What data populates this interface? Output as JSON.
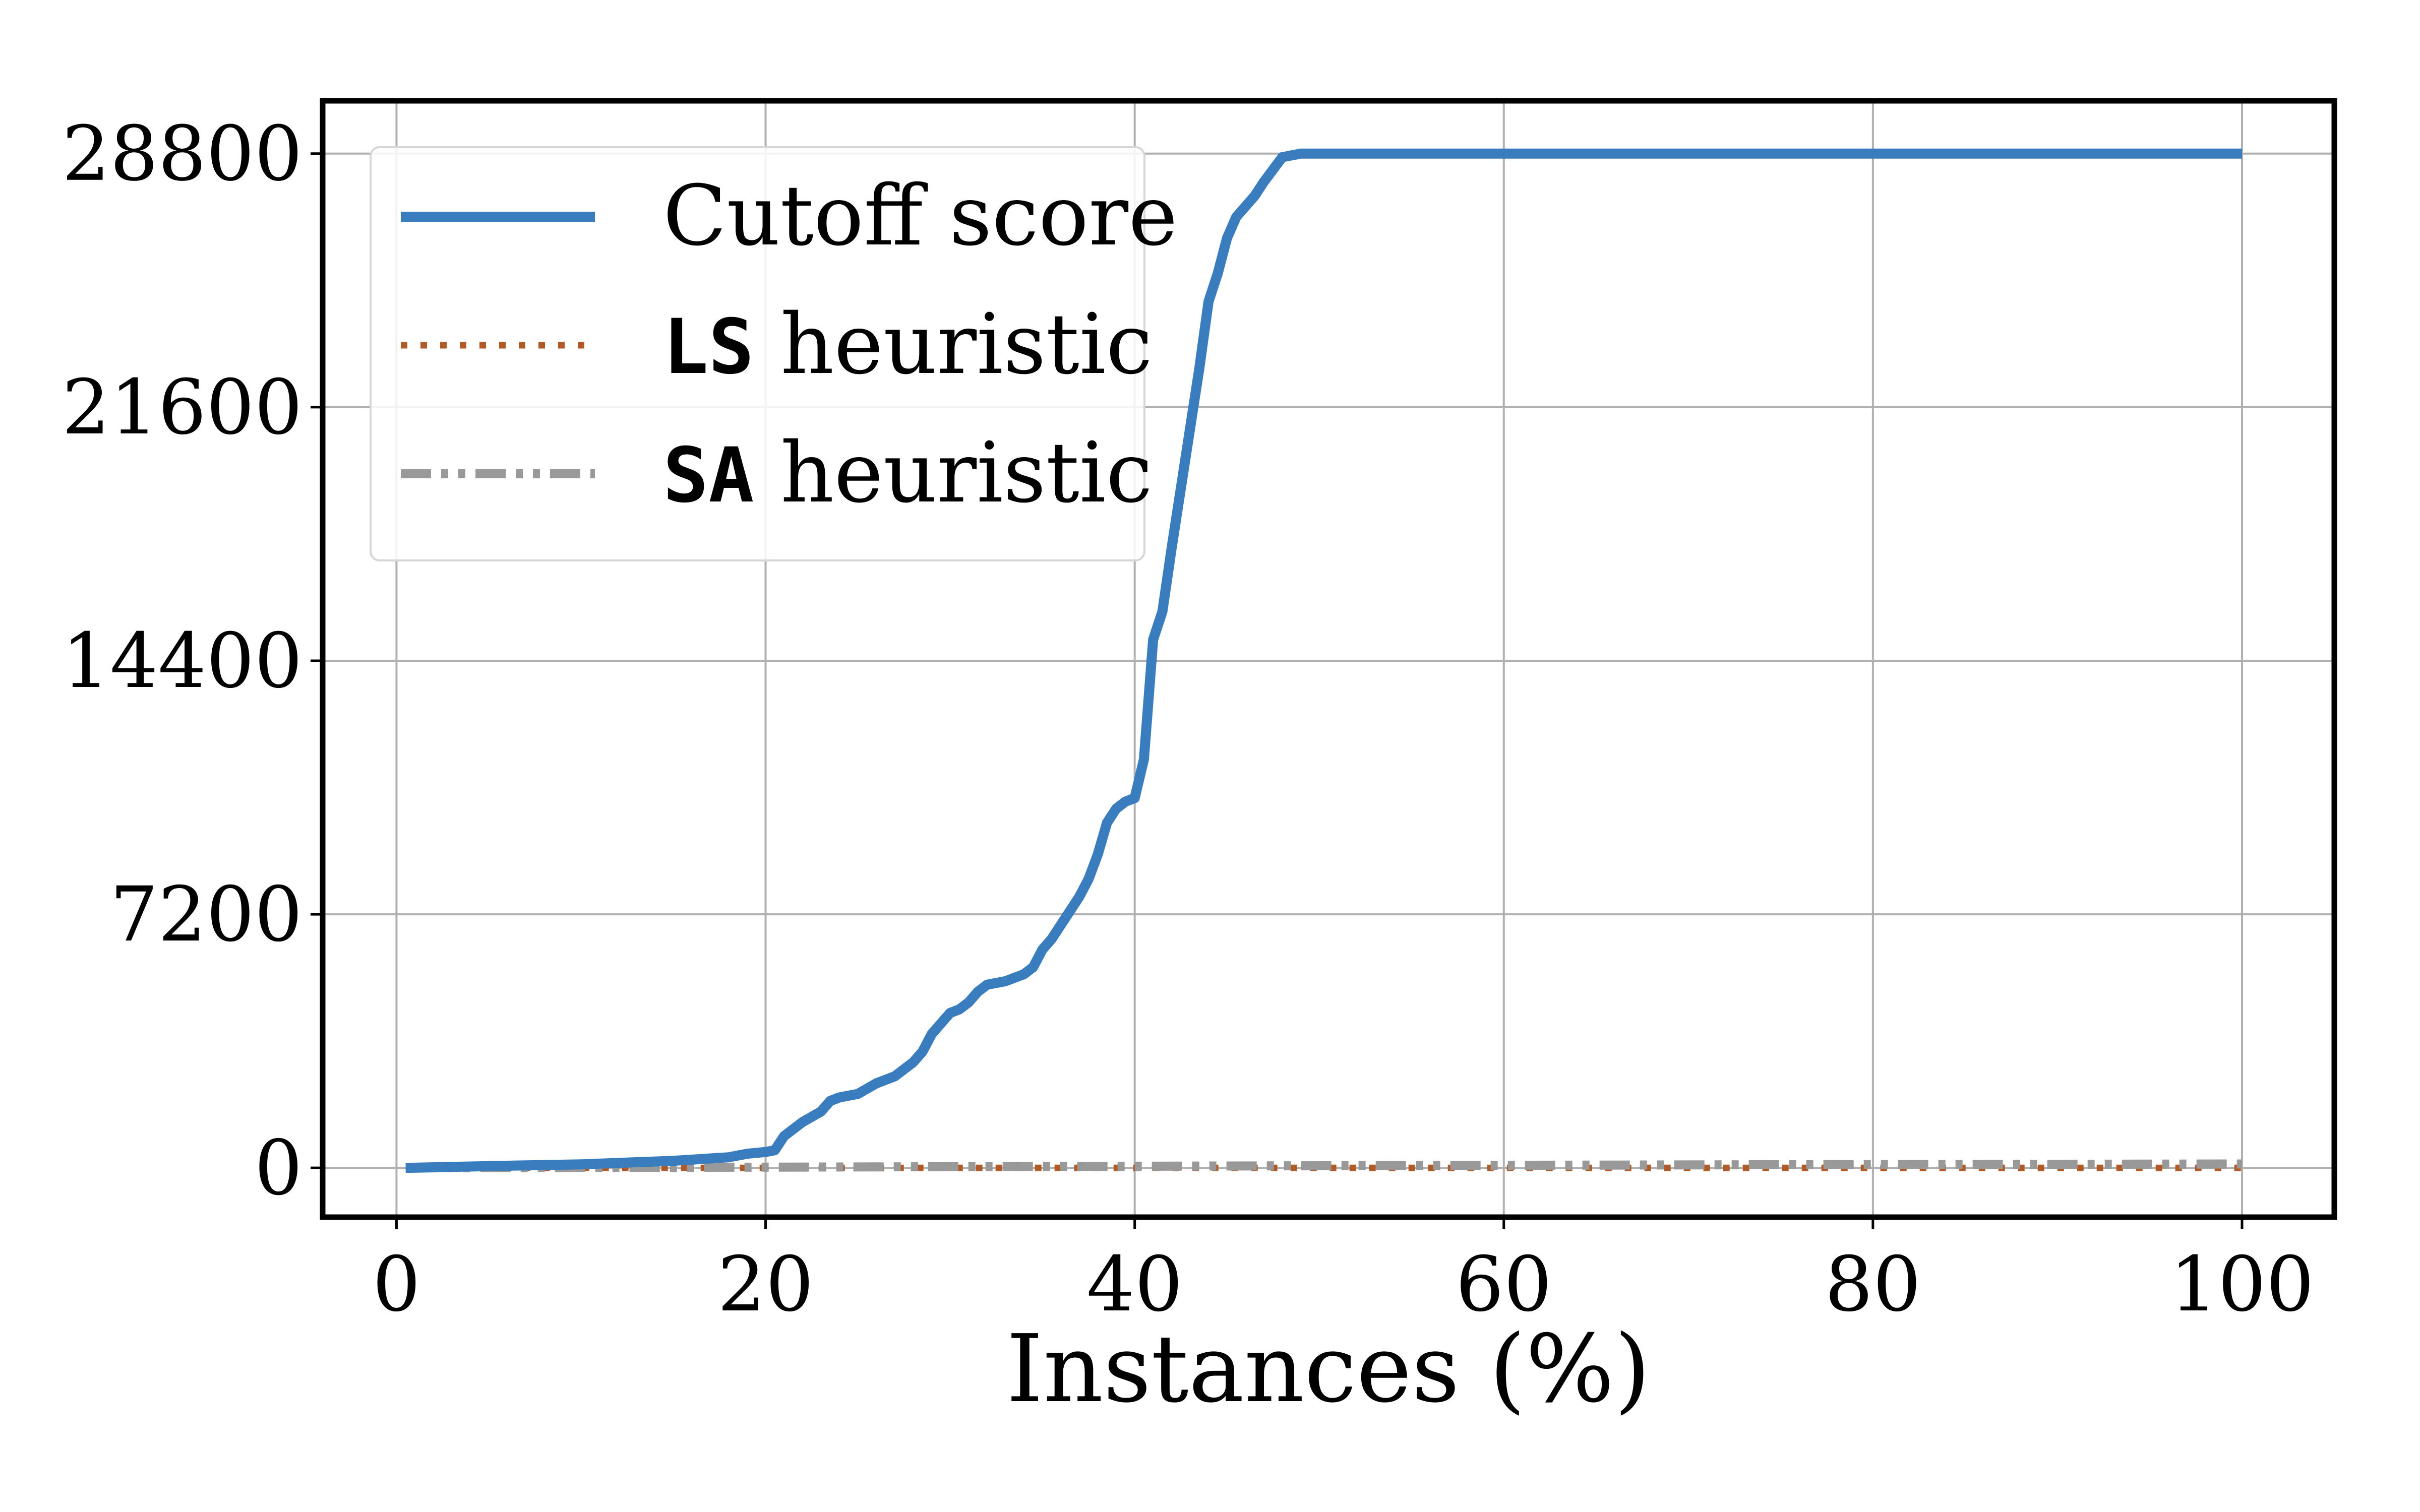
{
  "chart_data": {
    "type": "line",
    "title": "",
    "xlabel": "Instances (%)",
    "ylabel": "",
    "xlim": [
      -4,
      105
    ],
    "ylim": [
      -1400,
      30300
    ],
    "xticks": [
      0,
      20,
      40,
      60,
      80,
      100
    ],
    "yticks": [
      0,
      7200,
      14400,
      21600,
      28800
    ],
    "grid": true,
    "legend_position": "top-left",
    "series": [
      {
        "name": "Cutoff score",
        "name_mono": "",
        "name_rest": "Cutoff score",
        "color": "#3a7dbe",
        "style": "solid",
        "x": [
          0.5,
          5,
          10,
          15,
          18,
          19,
          20,
          20.5,
          21,
          22,
          23,
          23.5,
          24,
          25,
          26,
          27,
          27.5,
          28,
          28.5,
          29,
          29.5,
          30,
          30.5,
          31,
          31.5,
          32,
          33,
          34,
          34.5,
          35,
          35.5,
          36,
          36.5,
          37,
          37.5,
          38,
          38.5,
          39,
          39.5,
          40,
          40.5,
          41,
          41.5,
          42,
          42.5,
          43,
          43.5,
          44,
          44.5,
          45,
          45.5,
          46,
          46.5,
          47,
          48,
          49,
          50,
          100
        ],
        "y": [
          0,
          50,
          100,
          200,
          300,
          400,
          450,
          500,
          900,
          1300,
          1600,
          1900,
          2000,
          2100,
          2400,
          2600,
          2800,
          3000,
          3300,
          3800,
          4100,
          4400,
          4500,
          4700,
          5000,
          5200,
          5300,
          5500,
          5700,
          6200,
          6500,
          6900,
          7300,
          7700,
          8200,
          8900,
          9800,
          10200,
          10400,
          10500,
          11600,
          15000,
          15800,
          17600,
          19300,
          21000,
          22700,
          24600,
          25400,
          26400,
          27000,
          27300,
          27600,
          28000,
          28700,
          28800,
          28800,
          28800
        ]
      },
      {
        "name": "LS heuristic",
        "name_mono": "LS",
        "name_rest": " heuristic",
        "color": "#b05a28",
        "style": "dotted",
        "x": [
          0.5,
          100
        ],
        "y": [
          0,
          0
        ]
      },
      {
        "name": "SA heuristic",
        "name_mono": "SA",
        "name_rest": " heuristic",
        "color": "#999999",
        "style": "dashdot",
        "x": [
          0.5,
          20,
          50,
          75,
          100
        ],
        "y": [
          0,
          20,
          60,
          90,
          110
        ]
      }
    ]
  }
}
